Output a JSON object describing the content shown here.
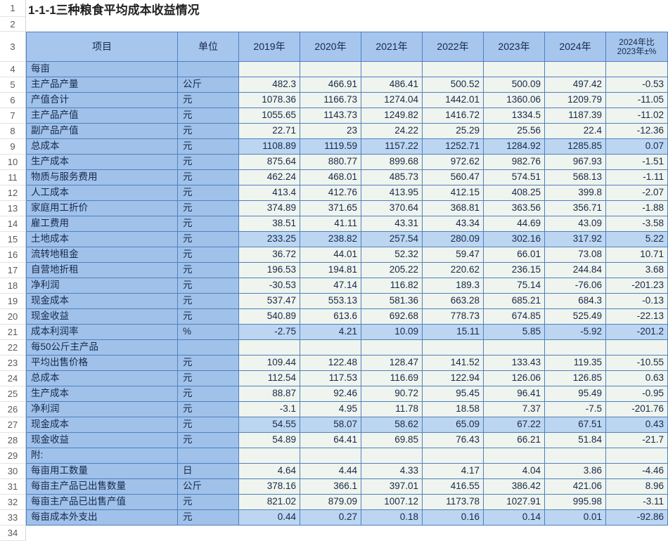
{
  "title": "1-1-1三种粮食平均成本收益情况",
  "columns": [
    "项目",
    "单位",
    "2019年",
    "2020年",
    "2021年",
    "2022年",
    "2023年",
    "2024年"
  ],
  "change_header": [
    "2024年比",
    "2023年±%"
  ],
  "row_numbers": [
    1,
    2,
    3,
    4,
    5,
    6,
    7,
    8,
    9,
    10,
    11,
    12,
    13,
    14,
    15,
    16,
    17,
    18,
    19,
    20,
    21,
    22,
    23,
    24,
    25,
    26,
    27,
    28,
    29,
    30,
    31,
    32,
    33,
    34
  ],
  "rows": [
    {
      "n": 4,
      "label": "每亩",
      "unit": "",
      "values": [
        "",
        "",
        "",
        "",
        "",
        ""
      ],
      "change": "",
      "kind": "section"
    },
    {
      "n": 5,
      "label": "主产品产量",
      "unit": "公斤",
      "values": [
        "482.3",
        "466.91",
        "486.41",
        "500.52",
        "500.09",
        "497.42"
      ],
      "change": "-0.53",
      "kind": "normal"
    },
    {
      "n": 6,
      "label": "产值合计",
      "unit": "元",
      "values": [
        "1078.36",
        "1166.73",
        "1274.04",
        "1442.01",
        "1360.06",
        "1209.79"
      ],
      "change": "-11.05",
      "kind": "normal"
    },
    {
      "n": 7,
      "label": "主产品产值",
      "unit": "元",
      "values": [
        "1055.65",
        "1143.73",
        "1249.82",
        "1416.72",
        "1334.5",
        "1187.39"
      ],
      "change": "-11.02",
      "kind": "normal"
    },
    {
      "n": 8,
      "label": "副产品产值",
      "unit": "元",
      "values": [
        "22.71",
        "23",
        "24.22",
        "25.29",
        "25.56",
        "22.4"
      ],
      "change": "-12.36",
      "kind": "normal"
    },
    {
      "n": 9,
      "label": "总成本",
      "unit": "元",
      "values": [
        "1108.89",
        "1119.59",
        "1157.22",
        "1252.71",
        "1284.92",
        "1285.85"
      ],
      "change": "0.07",
      "kind": "highlight"
    },
    {
      "n": 10,
      "label": "生产成本",
      "unit": "元",
      "values": [
        "875.64",
        "880.77",
        "899.68",
        "972.62",
        "982.76",
        "967.93"
      ],
      "change": "-1.51",
      "kind": "normal"
    },
    {
      "n": 11,
      "label": "物质与服务费用",
      "unit": "元",
      "values": [
        "462.24",
        "468.01",
        "485.73",
        "560.47",
        "574.51",
        "568.13"
      ],
      "change": "-1.11",
      "kind": "normal"
    },
    {
      "n": 12,
      "label": "人工成本",
      "unit": "元",
      "values": [
        "413.4",
        "412.76",
        "413.95",
        "412.15",
        "408.25",
        "399.8"
      ],
      "change": "-2.07",
      "kind": "normal"
    },
    {
      "n": 13,
      "label": "家庭用工折价",
      "unit": "元",
      "values": [
        "374.89",
        "371.65",
        "370.64",
        "368.81",
        "363.56",
        "356.71"
      ],
      "change": "-1.88",
      "kind": "normal"
    },
    {
      "n": 14,
      "label": "雇工费用",
      "unit": "元",
      "values": [
        "38.51",
        "41.11",
        "43.31",
        "43.34",
        "44.69",
        "43.09"
      ],
      "change": "-3.58",
      "kind": "normal"
    },
    {
      "n": 15,
      "label": "土地成本",
      "unit": "元",
      "values": [
        "233.25",
        "238.82",
        "257.54",
        "280.09",
        "302.16",
        "317.92"
      ],
      "change": "5.22",
      "kind": "highlight"
    },
    {
      "n": 16,
      "label": "流转地租金",
      "unit": "元",
      "values": [
        "36.72",
        "44.01",
        "52.32",
        "59.47",
        "66.01",
        "73.08"
      ],
      "change": "10.71",
      "kind": "normal"
    },
    {
      "n": 17,
      "label": "自营地折租",
      "unit": "元",
      "values": [
        "196.53",
        "194.81",
        "205.22",
        "220.62",
        "236.15",
        "244.84"
      ],
      "change": "3.68",
      "kind": "normal"
    },
    {
      "n": 18,
      "label": "净利润",
      "unit": "元",
      "values": [
        "-30.53",
        "47.14",
        "116.82",
        "189.3",
        "75.14",
        "-76.06"
      ],
      "change": "-201.23",
      "kind": "normal"
    },
    {
      "n": 19,
      "label": "现金成本",
      "unit": "元",
      "values": [
        "537.47",
        "553.13",
        "581.36",
        "663.28",
        "685.21",
        "684.3"
      ],
      "change": "-0.13",
      "kind": "normal"
    },
    {
      "n": 20,
      "label": "现金收益",
      "unit": "元",
      "values": [
        "540.89",
        "613.6",
        "692.68",
        "778.73",
        "674.85",
        "525.49"
      ],
      "change": "-22.13",
      "kind": "normal"
    },
    {
      "n": 21,
      "label": "成本利润率",
      "unit": "%",
      "values": [
        "-2.75",
        "4.21",
        "10.09",
        "15.11",
        "5.85",
        "-5.92"
      ],
      "change": "-201.2",
      "kind": "highlight"
    },
    {
      "n": 22,
      "label": "每50公斤主产品",
      "unit": "",
      "values": [
        "",
        "",
        "",
        "",
        "",
        ""
      ],
      "change": "",
      "kind": "section"
    },
    {
      "n": 23,
      "label": "平均出售价格",
      "unit": "元",
      "values": [
        "109.44",
        "122.48",
        "128.47",
        "141.52",
        "133.43",
        "119.35"
      ],
      "change": "-10.55",
      "kind": "normal"
    },
    {
      "n": 24,
      "label": "总成本",
      "unit": "元",
      "values": [
        "112.54",
        "117.53",
        "116.69",
        "122.94",
        "126.06",
        "126.85"
      ],
      "change": "0.63",
      "kind": "normal"
    },
    {
      "n": 25,
      "label": "生产成本",
      "unit": "元",
      "values": [
        "88.87",
        "92.46",
        "90.72",
        "95.45",
        "96.41",
        "95.49"
      ],
      "change": "-0.95",
      "kind": "normal"
    },
    {
      "n": 26,
      "label": "净利润",
      "unit": "元",
      "values": [
        "-3.1",
        "4.95",
        "11.78",
        "18.58",
        "7.37",
        "-7.5"
      ],
      "change": "-201.76",
      "kind": "normal"
    },
    {
      "n": 27,
      "label": "现金成本",
      "unit": "元",
      "values": [
        "54.55",
        "58.07",
        "58.62",
        "65.09",
        "67.22",
        "67.51"
      ],
      "change": "0.43",
      "kind": "highlight"
    },
    {
      "n": 28,
      "label": "现金收益",
      "unit": "元",
      "values": [
        "54.89",
        "64.41",
        "69.85",
        "76.43",
        "66.21",
        "51.84"
      ],
      "change": "-21.7",
      "kind": "normal"
    },
    {
      "n": 29,
      "label": "附:",
      "unit": "",
      "values": [
        "",
        "",
        "",
        "",
        "",
        ""
      ],
      "change": "",
      "kind": "section"
    },
    {
      "n": 30,
      "label": "每亩用工数量",
      "unit": "日",
      "values": [
        "4.64",
        "4.44",
        "4.33",
        "4.17",
        "4.04",
        "3.86"
      ],
      "change": "-4.46",
      "kind": "normal"
    },
    {
      "n": 31,
      "label": "每亩主产品已出售数量",
      "unit": "公斤",
      "values": [
        "378.16",
        "366.1",
        "397.01",
        "416.55",
        "386.42",
        "421.06"
      ],
      "change": "8.96",
      "kind": "normal"
    },
    {
      "n": 32,
      "label": "每亩主产品已出售产值",
      "unit": "元",
      "values": [
        "821.02",
        "879.09",
        "1007.12",
        "1173.78",
        "1027.91",
        "995.98"
      ],
      "change": "-3.11",
      "kind": "normal"
    },
    {
      "n": 33,
      "label": "每亩成本外支出",
      "unit": "元",
      "values": [
        "0.44",
        "0.27",
        "0.18",
        "0.16",
        "0.14",
        "0.01"
      ],
      "change": "-92.86",
      "kind": "highlight"
    }
  ]
}
